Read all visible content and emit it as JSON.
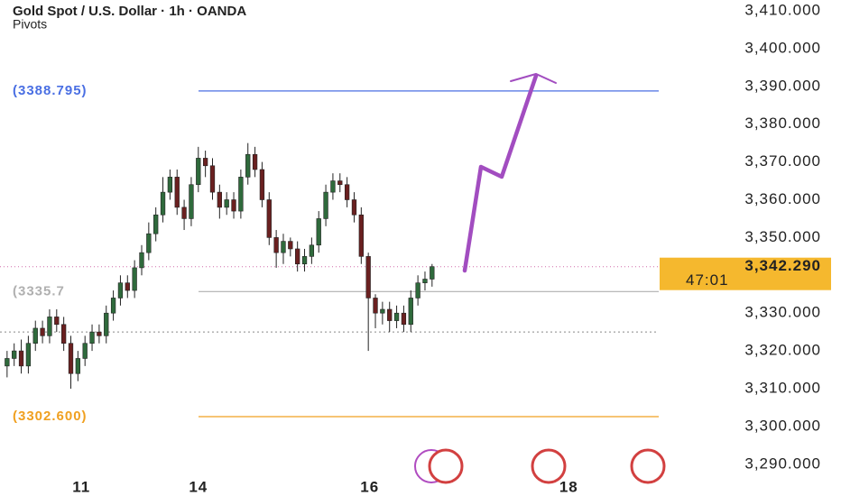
{
  "chart_data": {
    "type": "candlestick",
    "title": "Gold Spot / U.S. Dollar · 1h · OANDA",
    "subtitle": "Pivots",
    "x": [
      0,
      1,
      2,
      3,
      4,
      5,
      6,
      7,
      8,
      9,
      10,
      11,
      12,
      13,
      14,
      15,
      16,
      17,
      18,
      19,
      20,
      21,
      22,
      23,
      24,
      25,
      26,
      27,
      28,
      29,
      30,
      31,
      32,
      33,
      34,
      35,
      36,
      37,
      38,
      39,
      40,
      41,
      42,
      43,
      44,
      45,
      46,
      47,
      48,
      49,
      50,
      51,
      52,
      53,
      54,
      55,
      56,
      57,
      58,
      59,
      60
    ],
    "open": [
      3316,
      3318,
      3320,
      3316,
      3322,
      3326,
      3324,
      3329,
      3327,
      3322,
      3314,
      3318,
      3322,
      3325,
      3324,
      3330,
      3334,
      3338,
      3336,
      3342,
      3346,
      3351,
      3356,
      3362,
      3366,
      3358,
      3355,
      3364,
      3371,
      3369,
      3362,
      3358,
      3360,
      3357,
      3366,
      3372,
      3368,
      3360,
      3350,
      3346,
      3349,
      3347,
      3343,
      3345,
      3348,
      3355,
      3362,
      3365,
      3364,
      3360,
      3356,
      3345,
      3334,
      3330,
      3331,
      3328,
      3330,
      3327,
      3334,
      3338,
      3339
    ],
    "high": [
      3320,
      3322,
      3323,
      3324,
      3328,
      3328,
      3331,
      3331,
      3329,
      3324,
      3320,
      3324,
      3327,
      3327,
      3332,
      3336,
      3340,
      3340,
      3344,
      3348,
      3354,
      3358,
      3366,
      3368,
      3368,
      3360,
      3366,
      3374,
      3373,
      3371,
      3364,
      3362,
      3362,
      3368,
      3375,
      3374,
      3370,
      3362,
      3352,
      3351,
      3350,
      3349,
      3347,
      3350,
      3357,
      3364,
      3367,
      3367,
      3366,
      3362,
      3358,
      3346,
      3335,
      3333,
      3333,
      3332,
      3332,
      3336,
      3340,
      3341,
      3343
    ],
    "low": [
      3313,
      3316,
      3314,
      3314,
      3320,
      3322,
      3322,
      3325,
      3320,
      3310,
      3312,
      3316,
      3320,
      3322,
      3322,
      3328,
      3332,
      3334,
      3334,
      3340,
      3344,
      3349,
      3354,
      3360,
      3356,
      3352,
      3353,
      3362,
      3366,
      3360,
      3355,
      3356,
      3355,
      3355,
      3364,
      3366,
      3358,
      3348,
      3342,
      3343,
      3345,
      3341,
      3341,
      3343,
      3346,
      3353,
      3360,
      3362,
      3358,
      3354,
      3343,
      3320,
      3326,
      3327,
      3325,
      3326,
      3325,
      3325,
      3332,
      3336,
      3337
    ],
    "close": [
      3318,
      3320,
      3316,
      3322,
      3326,
      3324,
      3329,
      3327,
      3322,
      3314,
      3318,
      3322,
      3325,
      3324,
      3330,
      3334,
      3338,
      3336,
      3342,
      3346,
      3351,
      3356,
      3362,
      3366,
      3358,
      3355,
      3364,
      3371,
      3369,
      3362,
      3358,
      3360,
      3357,
      3366,
      3372,
      3368,
      3360,
      3350,
      3346,
      3349,
      3347,
      3343,
      3345,
      3348,
      3355,
      3362,
      3365,
      3364,
      3360,
      3356,
      3345,
      3334,
      3330,
      3331,
      3328,
      3330,
      3327,
      3334,
      3338,
      3339,
      3342.29
    ],
    "up_color": "#2f6a3c",
    "down_color": "#6a2020",
    "xlim": [
      -1,
      92
    ],
    "xticks": [
      {
        "value": 10.5,
        "label": "11"
      },
      {
        "value": 27,
        "label": "14"
      },
      {
        "value": 51.2,
        "label": "16"
      },
      {
        "value": 79.3,
        "label": "18"
      }
    ],
    "ylim": [
      3288.8,
      3412.9
    ],
    "yticks": [
      {
        "value": 3290,
        "label": "3,290.000"
      },
      {
        "value": 3300,
        "label": "3,300.000"
      },
      {
        "value": 3310,
        "label": "3,310.000"
      },
      {
        "value": 3320,
        "label": "3,320.000"
      },
      {
        "value": 3330,
        "label": "3,330.000"
      },
      {
        "value": 3340,
        "label": "3,340.000"
      },
      {
        "value": 3350,
        "label": "3,350.000"
      },
      {
        "value": 3360,
        "label": "3,360.000"
      },
      {
        "value": 3370,
        "label": "3,370.000"
      },
      {
        "value": 3380,
        "label": "3,380.000"
      },
      {
        "value": 3390,
        "label": "3,390.000"
      },
      {
        "value": 3400,
        "label": "3,400.000"
      },
      {
        "value": 3410,
        "label": "3,410.000"
      }
    ],
    "levels": [
      {
        "label": "(3388.795)",
        "value": 3388.795,
        "color": "#4a6fe3"
      },
      {
        "label": "(3335.7",
        "value": 3335.7,
        "color": "#b0b0b0"
      },
      {
        "label": "(3302.600)",
        "value": 3302.6,
        "color": "#f0a020"
      }
    ],
    "dotted_level": 3325,
    "last_price": {
      "value": 3342.29,
      "label": "3,342.290"
    },
    "countdown": "47:01",
    "grid": false
  }
}
